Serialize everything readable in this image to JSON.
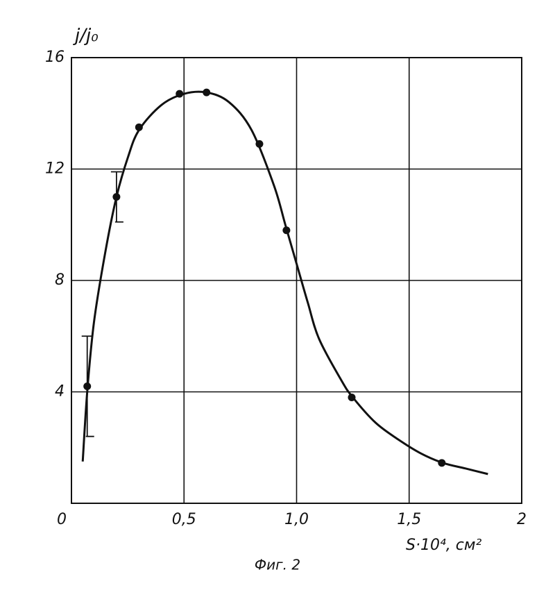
{
  "chart_data": {
    "type": "scatter",
    "y_label": "j/j₀",
    "x_label": "S·10⁴, см²",
    "caption": "Фиг. 2",
    "color": "#111111",
    "grid": true,
    "xlim": [
      0,
      2
    ],
    "ylim": [
      0,
      16
    ],
    "xticks": [
      0,
      {
        "value": 0.5,
        "label": "0,5"
      },
      {
        "value": 1.0,
        "label": "1,0"
      },
      {
        "value": 1.5,
        "label": "1,5"
      },
      2
    ],
    "yticks": [
      4,
      8,
      12,
      16
    ],
    "points": {
      "x": [
        0.07,
        0.2,
        0.3,
        0.48,
        0.6,
        0.835,
        0.955,
        1.245,
        1.645
      ],
      "values": [
        4.2,
        11.0,
        13.5,
        14.7,
        14.75,
        12.9,
        9.8,
        3.8,
        1.45
      ],
      "errors": [
        1.8,
        0.9,
        null,
        null,
        null,
        null,
        null,
        null,
        null
      ]
    },
    "curve": {
      "x": [
        0.05,
        0.07,
        0.1,
        0.15,
        0.2,
        0.25,
        0.3,
        0.4,
        0.5,
        0.6,
        0.7,
        0.8,
        0.9,
        0.95,
        1.0,
        1.05,
        1.1,
        1.2,
        1.25,
        1.35,
        1.45,
        1.55,
        1.65,
        1.75,
        1.85
      ],
      "values": [
        1.5,
        4.0,
        6.5,
        9.0,
        11.0,
        12.4,
        13.4,
        14.3,
        14.7,
        14.75,
        14.4,
        13.4,
        11.4,
        10.0,
        8.6,
        7.2,
        5.9,
        4.4,
        3.8,
        2.9,
        2.3,
        1.8,
        1.45,
        1.25,
        1.05
      ]
    }
  }
}
